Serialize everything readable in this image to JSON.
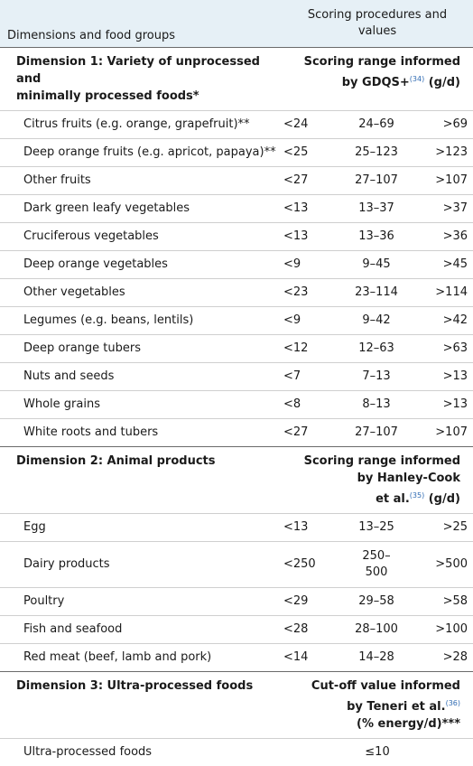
{
  "header": {
    "left": "Dimensions and food groups",
    "right_line1": "Scoring procedures and",
    "right_line2": "values"
  },
  "dimension1": {
    "title_line1": "Dimension 1: Variety of unprocessed and",
    "title_line2": "minimally processed foods*",
    "scoring_line1": "Scoring range informed",
    "scoring_line2": "by GDQS+",
    "scoring_ref": "(34)",
    "scoring_unit": " (g/d)",
    "items": [
      {
        "name": "Citrus fruits (e.g. orange, grapefruit)**",
        "low": "<24",
        "mid": "24–69",
        "high": ">69"
      },
      {
        "name": "Deep orange fruits (e.g. apricot, papaya)**",
        "low": "<25",
        "mid": "25–123",
        "high": ">123"
      },
      {
        "name": "Other fruits",
        "low": "<27",
        "mid": "27–107",
        "high": ">107"
      },
      {
        "name": "Dark green leafy vegetables",
        "low": "<13",
        "mid": "13–37",
        "high": ">37"
      },
      {
        "name": "Cruciferous vegetables",
        "low": "<13",
        "mid": "13–36",
        "high": ">36"
      },
      {
        "name": "Deep orange vegetables",
        "low": "<9",
        "mid": "9–45",
        "high": ">45"
      },
      {
        "name": "Other vegetables",
        "low": "<23",
        "mid": "23–114",
        "high": ">114"
      },
      {
        "name": "Legumes (e.g. beans, lentils)",
        "low": "<9",
        "mid": "9–42",
        "high": ">42"
      },
      {
        "name": "Deep orange tubers",
        "low": "<12",
        "mid": "12–63",
        "high": ">63"
      },
      {
        "name": "Nuts and seeds",
        "low": "<7",
        "mid": "7–13",
        "high": ">13"
      },
      {
        "name": "Whole grains",
        "low": "<8",
        "mid": "8–13",
        "high": ">13"
      },
      {
        "name": "White roots and tubers",
        "low": "<27",
        "mid": "27–107",
        "high": ">107"
      }
    ]
  },
  "dimension2": {
    "title": "Dimension 2: Animal products",
    "scoring_line1": "Scoring range informed",
    "scoring_line2": "by Hanley-Cook",
    "scoring_line3": "et al.",
    "scoring_ref": "(35)",
    "scoring_unit": " (g/d)",
    "items": [
      {
        "name": "Egg",
        "low": "<13",
        "mid": "13–25",
        "high": ">25"
      },
      {
        "name": "Dairy products",
        "low": "<250",
        "mid_line1": "250–",
        "mid_line2": "500",
        "high": ">500"
      },
      {
        "name": "Poultry",
        "low": "<29",
        "mid": "29–58",
        "high": ">58"
      },
      {
        "name": "Fish and seafood",
        "low": "<28",
        "mid": "28–100",
        "high": ">100"
      },
      {
        "name": "Red meat (beef, lamb and pork)",
        "low": "<14",
        "mid": "14–28",
        "high": ">28"
      }
    ]
  },
  "dimension3": {
    "title": "Dimension 3: Ultra-processed foods",
    "scoring_line1": "Cut-off value informed",
    "scoring_line2": "by Teneri et al.",
    "scoring_ref": "(36)",
    "scoring_line3": "(% energy/d)***",
    "items": [
      {
        "name": "Ultra-processed foods",
        "value": "≤10"
      }
    ]
  }
}
